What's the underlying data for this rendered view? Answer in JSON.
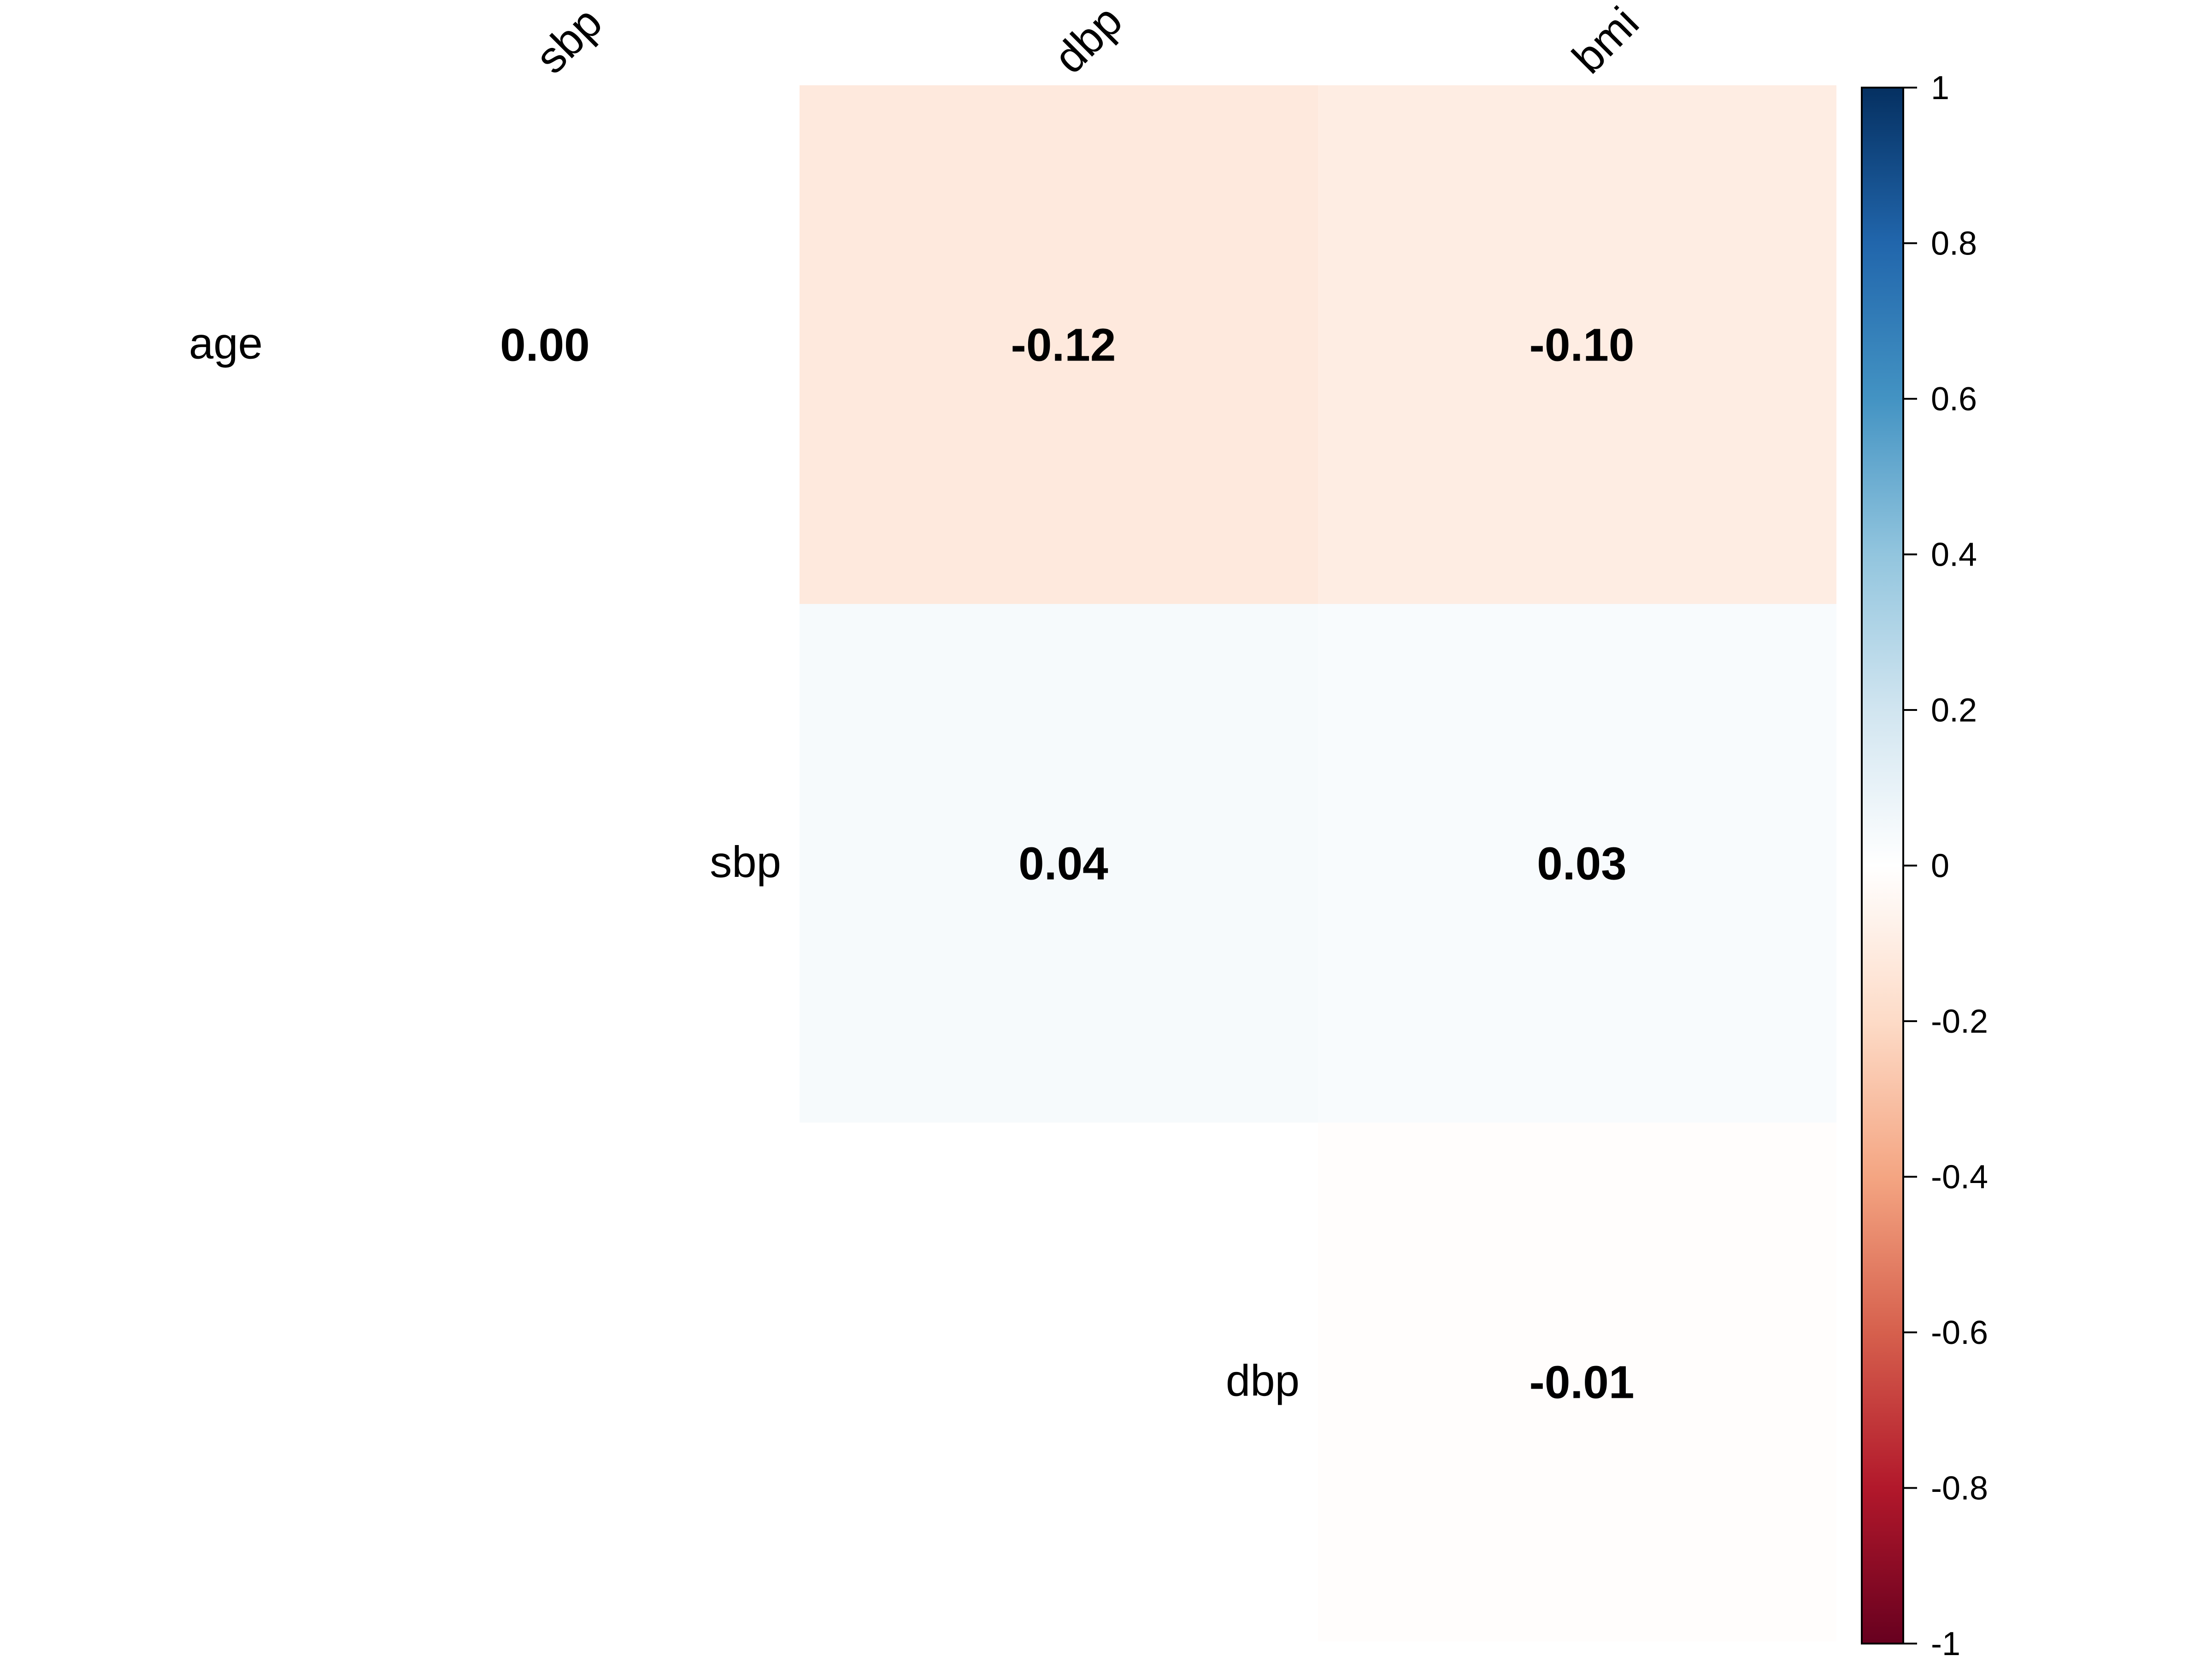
{
  "chart_data": {
    "type": "heatmap",
    "row_labels": [
      "age",
      "sbp",
      "dbp"
    ],
    "col_labels": [
      "sbp",
      "dbp",
      "bmi"
    ],
    "cells": [
      {
        "row": "age",
        "col": "sbp",
        "value": 0.0,
        "label": "0.00"
      },
      {
        "row": "age",
        "col": "dbp",
        "value": -0.12,
        "label": "-0.12"
      },
      {
        "row": "age",
        "col": "bmi",
        "value": -0.1,
        "label": "-0.10"
      },
      {
        "row": "sbp",
        "col": "dbp",
        "value": 0.04,
        "label": "0.04"
      },
      {
        "row": "sbp",
        "col": "bmi",
        "value": 0.03,
        "label": "0.03"
      },
      {
        "row": "dbp",
        "col": "bmi",
        "value": -0.01,
        "label": "-0.01"
      }
    ],
    "colorbar": {
      "range": [
        -1,
        1
      ],
      "tick_labels": [
        "1",
        "0.8",
        "0.6",
        "0.4",
        "0.2",
        "0",
        "-0.2",
        "-0.4",
        "-0.6",
        "-0.8",
        "-1"
      ],
      "tick_values": [
        1,
        0.8,
        0.6,
        0.4,
        0.2,
        0,
        -0.2,
        -0.4,
        -0.6,
        -0.8,
        -1
      ],
      "colors": [
        "#67001F",
        "#B2182B",
        "#D6604D",
        "#F4A582",
        "#FDDBC7",
        "#FFFFFF",
        "#D1E5F0",
        "#92C5DE",
        "#4393C3",
        "#2166AC",
        "#053061"
      ],
      "placement": "right"
    },
    "layout": "upper-triangle-shifted",
    "grid": false
  }
}
